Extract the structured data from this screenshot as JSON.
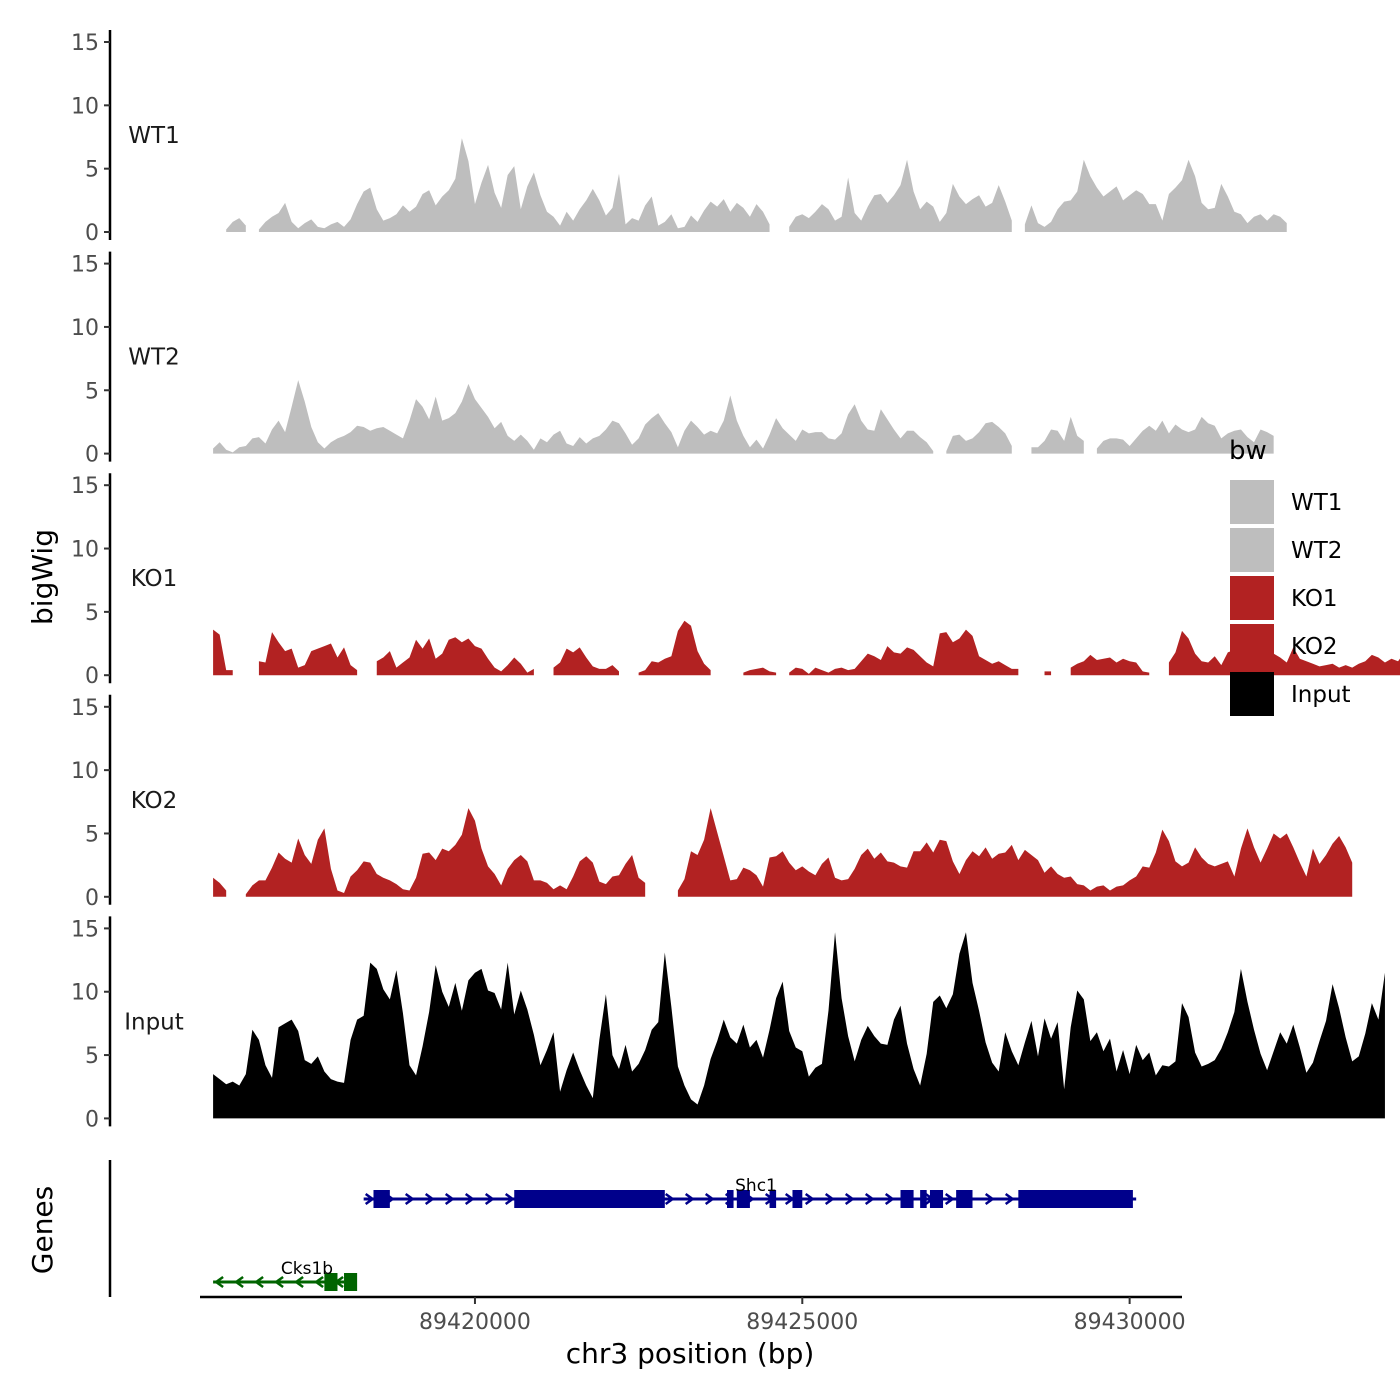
{
  "chart_data": {
    "type": "area",
    "title": "",
    "ylabel": "bigWig",
    "genes_label": "Genes",
    "xlabel": "chr3 position (bp)",
    "xlim": [
      89415800,
      89430800
    ],
    "ylim": [
      0,
      15
    ],
    "y_ticks": [
      0,
      5,
      10,
      15
    ],
    "x_ticks": [
      89420000,
      89425000,
      89430000
    ],
    "x_tick_labels": [
      "89420000",
      "89425000",
      "89430000"
    ],
    "data_start": 89416000,
    "data_step": 100,
    "grid": false,
    "legend": {
      "title": "bw",
      "position": "right",
      "entries": [
        {
          "label": "WT1",
          "color": "#bebebe"
        },
        {
          "label": "WT2",
          "color": "#bebebe"
        },
        {
          "label": "KO1",
          "color": "#b22222"
        },
        {
          "label": "KO2",
          "color": "#b22222"
        },
        {
          "label": "Input",
          "color": "#000000"
        }
      ]
    },
    "series": [
      {
        "name": "WT1",
        "color": "#bebebe",
        "values": [
          null,
          null,
          0.2,
          0.8,
          1.1,
          0.5,
          null,
          0.2,
          0.8,
          1.2,
          1.5,
          2.3,
          0.8,
          0.3,
          0.7,
          1.0,
          0.4,
          0.3,
          0.6,
          0.8,
          0.4,
          1.0,
          2.2,
          3.2,
          3.5,
          1.8,
          0.9,
          1.1,
          1.4,
          2.1,
          1.6,
          2.0,
          3.0,
          3.3,
          2.1,
          2.8,
          3.3,
          4.2,
          7.4,
          5.6,
          2.2,
          3.9,
          5.3,
          3.1,
          1.9,
          4.5,
          5.2,
          1.8,
          3.6,
          4.7,
          2.9,
          1.6,
          1.2,
          0.5,
          1.6,
          0.9,
          1.8,
          2.5,
          3.4,
          2.5,
          1.3,
          1.9,
          4.6,
          0.6,
          1.1,
          0.9,
          2.1,
          2.8,
          0.5,
          0.8,
          1.4,
          0.3,
          0.4,
          1.3,
          0.8,
          1.7,
          2.4,
          2.0,
          2.6,
          1.6,
          2.3,
          1.9,
          1.2,
          2.2,
          1.6,
          0.6,
          null,
          null,
          0.4,
          1.2,
          1.4,
          1.1,
          1.6,
          2.2,
          1.8,
          0.9,
          1.2,
          4.3,
          1.5,
          0.9,
          2.0,
          2.9,
          3.0,
          2.3,
          2.9,
          3.7,
          5.7,
          3.2,
          1.8,
          2.4,
          2.0,
          0.8,
          1.5,
          3.8,
          2.8,
          2.2,
          2.6,
          2.9,
          2.0,
          2.3,
          3.7,
          2.4,
          0.9,
          null,
          0.6,
          2.1,
          0.7,
          0.4,
          0.8,
          1.8,
          2.4,
          2.5,
          3.2,
          5.7,
          4.4,
          3.5,
          2.8,
          3.2,
          3.6,
          2.5,
          2.9,
          3.3,
          3.0,
          2.2,
          2.2,
          0.9,
          3.0,
          3.5,
          4.1,
          5.7,
          4.4,
          2.3,
          1.8,
          1.9,
          3.8,
          2.8,
          1.6,
          1.4,
          0.7,
          1.2,
          1.4,
          0.9,
          1.4,
          1.2,
          0.7
        ]
      },
      {
        "name": "WT2",
        "color": "#bebebe",
        "values": [
          0.4,
          0.9,
          0.3,
          0.1,
          0.5,
          0.6,
          1.2,
          1.3,
          0.8,
          1.9,
          2.6,
          1.7,
          3.7,
          5.8,
          4.1,
          2.1,
          0.9,
          0.4,
          0.9,
          1.2,
          1.4,
          1.7,
          2.2,
          2.1,
          1.8,
          2.0,
          2.1,
          1.8,
          1.5,
          1.2,
          2.6,
          4.3,
          3.7,
          2.7,
          4.5,
          2.6,
          2.8,
          3.2,
          4.1,
          5.5,
          4.3,
          3.6,
          2.9,
          2.0,
          2.5,
          1.4,
          1.0,
          1.5,
          1.0,
          0.3,
          1.2,
          0.9,
          1.5,
          1.8,
          0.8,
          0.6,
          1.3,
          0.8,
          1.2,
          1.4,
          1.9,
          2.6,
          2.4,
          1.6,
          0.7,
          1.2,
          2.3,
          2.8,
          3.2,
          2.4,
          1.7,
          0.5,
          1.8,
          2.6,
          2.1,
          1.5,
          1.8,
          1.6,
          2.6,
          4.6,
          2.6,
          1.4,
          0.5,
          1.1,
          0.4,
          1.5,
          2.8,
          2.0,
          1.5,
          1.0,
          1.9,
          1.6,
          1.7,
          1.7,
          1.2,
          1.1,
          1.6,
          3.1,
          3.9,
          2.6,
          1.9,
          1.8,
          3.5,
          2.7,
          1.9,
          1.2,
          1.8,
          1.8,
          1.3,
          0.9,
          0.2,
          null,
          0.2,
          1.4,
          1.5,
          1.0,
          1.2,
          1.7,
          2.4,
          2.5,
          2.1,
          1.6,
          0.6,
          null,
          null,
          0.5,
          0.5,
          1.0,
          1.9,
          1.8,
          1.0,
          2.9,
          1.4,
          1.0,
          null,
          0.4,
          1.0,
          1.2,
          1.2,
          1.1,
          0.6,
          1.2,
          1.8,
          2.2,
          1.8,
          2.6,
          1.6,
          2.3,
          1.9,
          1.7,
          1.9,
          2.9,
          2.4,
          2.2,
          1.2,
          1.6,
          1.8,
          1.9,
          1.3,
          0.9,
          1.9,
          1.7,
          1.4
        ]
      },
      {
        "name": "KO1",
        "color": "#b22222",
        "values": [
          3.6,
          3.2,
          0.4,
          0.4,
          null,
          null,
          null,
          1.1,
          1.0,
          3.4,
          2.6,
          1.9,
          2.1,
          0.6,
          0.8,
          1.9,
          2.1,
          2.3,
          2.5,
          1.4,
          2.2,
          0.8,
          0.4,
          null,
          null,
          1.1,
          1.4,
          1.9,
          0.6,
          1.0,
          1.4,
          2.8,
          2.1,
          2.9,
          1.3,
          1.7,
          2.8,
          3.0,
          2.6,
          2.9,
          2.3,
          2.1,
          1.3,
          0.6,
          0.3,
          0.8,
          1.4,
          0.9,
          0.2,
          0.5,
          null,
          null,
          0.6,
          1.0,
          2.1,
          1.8,
          2.2,
          1.4,
          0.7,
          0.5,
          0.5,
          0.8,
          0.3,
          null,
          null,
          0.2,
          0.4,
          1.1,
          1.0,
          1.3,
          1.5,
          3.5,
          4.3,
          3.9,
          1.9,
          0.9,
          0.4,
          null,
          null,
          null,
          null,
          0.2,
          0.4,
          0.5,
          0.6,
          0.3,
          0.2,
          null,
          0.2,
          0.6,
          0.5,
          0.1,
          0.6,
          0.4,
          0.2,
          0.5,
          0.6,
          0.4,
          0.5,
          1.1,
          1.7,
          1.5,
          1.2,
          2.3,
          1.8,
          1.7,
          2.2,
          2.0,
          1.5,
          1.0,
          0.7,
          3.3,
          3.4,
          2.6,
          2.9,
          3.6,
          3.1,
          1.5,
          1.2,
          0.9,
          1.1,
          0.8,
          0.5,
          0.5,
          null,
          null,
          null,
          0.3,
          0.3,
          null,
          null,
          0.6,
          0.9,
          1.1,
          1.6,
          1.2,
          1.3,
          1.4,
          1.0,
          1.3,
          1.1,
          1.0,
          0.3,
          0.2,
          null,
          null,
          1.0,
          1.8,
          3.5,
          2.9,
          1.7,
          1.1,
          1.0,
          1.5,
          0.8,
          1.8,
          2.0,
          1.7,
          1.8,
          1.4,
          1.1,
          1.3,
          1.7,
          1.4,
          1.0,
          2.2,
          1.3,
          1.1,
          0.9,
          0.7,
          0.8,
          0.9,
          0.6,
          0.8,
          0.6,
          0.9,
          1.1,
          1.6,
          1.4,
          1.0,
          1.3,
          1.1,
          1.8,
          2.0
        ]
      },
      {
        "name": "KO2",
        "color": "#b22222",
        "values": [
          1.5,
          1.1,
          0.5,
          null,
          null,
          0.2,
          0.9,
          1.3,
          1.3,
          2.3,
          3.5,
          3.0,
          2.7,
          4.6,
          3.3,
          2.6,
          4.5,
          5.4,
          2.2,
          0.5,
          0.3,
          1.6,
          2.1,
          2.8,
          2.7,
          1.8,
          1.5,
          1.3,
          1.0,
          0.6,
          0.5,
          1.5,
          3.4,
          3.5,
          2.9,
          3.8,
          3.6,
          4.1,
          4.9,
          7.0,
          6.0,
          3.8,
          2.4,
          1.8,
          0.9,
          2.2,
          2.9,
          3.3,
          2.8,
          1.3,
          1.3,
          1.1,
          0.6,
          0.9,
          0.6,
          1.6,
          2.8,
          3.2,
          2.7,
          1.2,
          1.0,
          1.6,
          1.7,
          2.6,
          3.3,
          1.5,
          1.1,
          null,
          null,
          null,
          null,
          0.5,
          1.4,
          3.6,
          3.3,
          4.5,
          7.0,
          5.1,
          3.2,
          1.3,
          1.4,
          2.3,
          2.1,
          1.7,
          0.8,
          3.1,
          3.2,
          3.6,
          2.7,
          2.1,
          2.4,
          2.0,
          1.7,
          2.6,
          3.1,
          1.5,
          1.3,
          1.4,
          2.2,
          3.3,
          3.8,
          3.0,
          3.5,
          2.8,
          2.7,
          2.4,
          2.3,
          3.6,
          3.6,
          4.3,
          3.5,
          4.5,
          4.4,
          2.8,
          1.8,
          2.9,
          3.6,
          3.2,
          3.9,
          3.0,
          3.4,
          3.5,
          4.1,
          2.9,
          3.7,
          3.3,
          2.9,
          1.9,
          2.4,
          1.8,
          1.5,
          1.6,
          1.0,
          0.9,
          0.5,
          0.8,
          0.9,
          0.5,
          0.8,
          0.9,
          1.3,
          1.6,
          2.4,
          2.3,
          3.5,
          5.3,
          4.4,
          2.8,
          2.4,
          2.7,
          3.9,
          3.1,
          2.6,
          2.4,
          2.6,
          2.8,
          1.6,
          3.8,
          5.4,
          3.9,
          2.7,
          3.8,
          5.0,
          4.6,
          5.0,
          3.9,
          2.7,
          1.6,
          3.8,
          2.6,
          3.3,
          4.2,
          4.8,
          3.9,
          2.7
        ]
      },
      {
        "name": "Input",
        "color": "#000000",
        "values": [
          3.5,
          3.1,
          2.7,
          2.9,
          2.6,
          3.5,
          7.0,
          6.2,
          4.2,
          3.2,
          7.2,
          7.5,
          7.8,
          6.9,
          4.6,
          4.3,
          4.9,
          3.7,
          3.1,
          2.9,
          2.8,
          6.2,
          7.8,
          8.1,
          12.3,
          11.8,
          10.2,
          9.4,
          11.7,
          8.3,
          4.2,
          3.4,
          5.7,
          8.4,
          12.1,
          10.0,
          8.8,
          10.7,
          8.5,
          10.9,
          11.5,
          11.8,
          10.1,
          9.9,
          8.6,
          12.3,
          8.2,
          10.1,
          8.6,
          6.6,
          4.2,
          5.4,
          6.8,
          2.1,
          3.8,
          5.2,
          3.8,
          2.6,
          1.6,
          6.2,
          9.8,
          5.0,
          3.9,
          5.8,
          3.7,
          4.3,
          5.4,
          7.0,
          7.6,
          13.1,
          8.8,
          4.1,
          2.6,
          1.5,
          1.1,
          2.6,
          4.7,
          6.1,
          7.8,
          6.4,
          5.9,
          7.4,
          5.6,
          6.2,
          4.8,
          7.0,
          9.5,
          10.8,
          6.9,
          5.6,
          5.3,
          3.3,
          4.0,
          4.3,
          8.5,
          14.7,
          9.5,
          6.5,
          4.5,
          6.2,
          7.3,
          6.5,
          5.9,
          5.8,
          7.8,
          8.9,
          5.9,
          3.9,
          2.6,
          5.1,
          9.2,
          9.7,
          8.7,
          9.8,
          13.0,
          14.7,
          10.7,
          8.5,
          6.0,
          4.4,
          3.7,
          6.8,
          5.3,
          4.2,
          6.0,
          7.7,
          4.9,
          7.9,
          6.3,
          7.6,
          2.3,
          7.2,
          10.1,
          9.4,
          6.1,
          6.8,
          5.3,
          6.3,
          3.7,
          5.4,
          3.5,
          5.8,
          4.6,
          5.2,
          3.4,
          4.2,
          4.1,
          4.5,
          9.1,
          8.0,
          5.2,
          4.1,
          4.3,
          4.6,
          5.5,
          6.8,
          8.4,
          11.8,
          9.2,
          7.0,
          5.1,
          3.8,
          5.3,
          6.8,
          5.9,
          7.4,
          5.6,
          3.6,
          4.4,
          6.1,
          7.7,
          10.6,
          8.7,
          6.4,
          4.5,
          4.9,
          6.7,
          9.1,
          7.8,
          11.5
        ]
      }
    ],
    "genes": [
      {
        "name": "Cks1b",
        "strand": "-",
        "color": "#006400",
        "track_row": 2,
        "tx_start": 89416000,
        "tx_end": 89418000,
        "exons": [
          [
            89417700,
            89417900
          ],
          [
            89418000,
            89418200
          ]
        ]
      },
      {
        "name": "Shc1",
        "strand": "+",
        "color": "#00008b",
        "track_row": 1,
        "tx_start": 89418300,
        "tx_end": 89430100,
        "exons": [
          [
            89418450,
            89418700
          ],
          [
            89420600,
            89422900
          ],
          [
            89423850,
            89423950
          ],
          [
            89424000,
            89424200
          ],
          [
            89424500,
            89424600
          ],
          [
            89424850,
            89425000
          ],
          [
            89426500,
            89426700
          ],
          [
            89426800,
            89426900
          ],
          [
            89426950,
            89427150
          ],
          [
            89427350,
            89427600
          ],
          [
            89428300,
            89430050
          ]
        ]
      }
    ]
  }
}
